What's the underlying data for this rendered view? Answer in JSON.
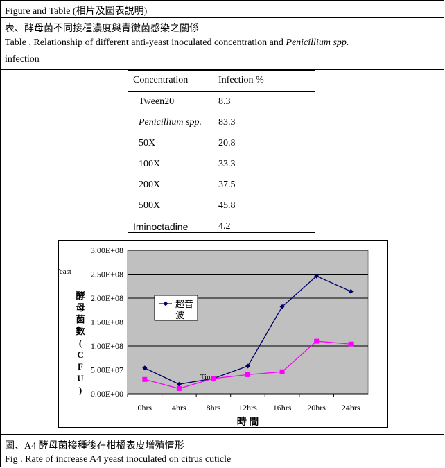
{
  "header": "Figure and Table (相片及圖表說明)",
  "table_caption_zh": "表、酵母菌不同接種濃度與青黴菌感染之關係",
  "table_caption_en_prefix": "Table . Relationship of different anti-yeast inoculated concentration and ",
  "table_caption_en_italic": "Penicillium spp.",
  "table_caption_en_suffix": "infection",
  "table": {
    "columns": [
      "Concentration",
      "Infection %"
    ],
    "rows": [
      [
        "Tween20",
        "8.3"
      ],
      [
        "Penicillium spp.",
        "83.3"
      ],
      [
        "50X",
        "20.8"
      ],
      [
        "100X",
        "33.3"
      ],
      [
        "200X",
        "37.5"
      ],
      [
        "500X",
        "45.8"
      ],
      [
        "Iminoctadine",
        "4.2"
      ]
    ]
  },
  "figure_caption_zh": "圖、A4 酵母菌接種後在柑橘表皮增殖情形",
  "figure_caption_en": "Fig . Rate of increase A4 yeast inoculated on citrus cuticle",
  "chart_data": {
    "type": "line",
    "categories": [
      "0hrs",
      "4hrs",
      "8hrs",
      "12hrs",
      "16hrs",
      "20hrs",
      "24hrs"
    ],
    "ylim": [
      0,
      300000000
    ],
    "yticks": [
      "0.00E+00",
      "5.00E+07",
      "1.00E+08",
      "1.50E+08",
      "2.00E+08",
      "2.50E+08",
      "3.00E+08"
    ],
    "ylabel": "酵母菌數(CFU)",
    "ylabel_en": "Yeast",
    "xlabel": "時 間",
    "xlabel_en": "Time",
    "grid": true,
    "legend_placement": "upper-left",
    "series": [
      {
        "name": "超音波",
        "color": "#000066",
        "marker": "diamond",
        "values": [
          54000000,
          20000000,
          32000000,
          58000000,
          182000000,
          246000000,
          214000000
        ]
      },
      {
        "color": "#ff00ff",
        "marker": "square",
        "values": [
          30000000,
          11000000,
          32000000,
          40000000,
          46000000,
          110000000,
          104000000
        ]
      }
    ],
    "plot_background": "#c0c0c0"
  }
}
